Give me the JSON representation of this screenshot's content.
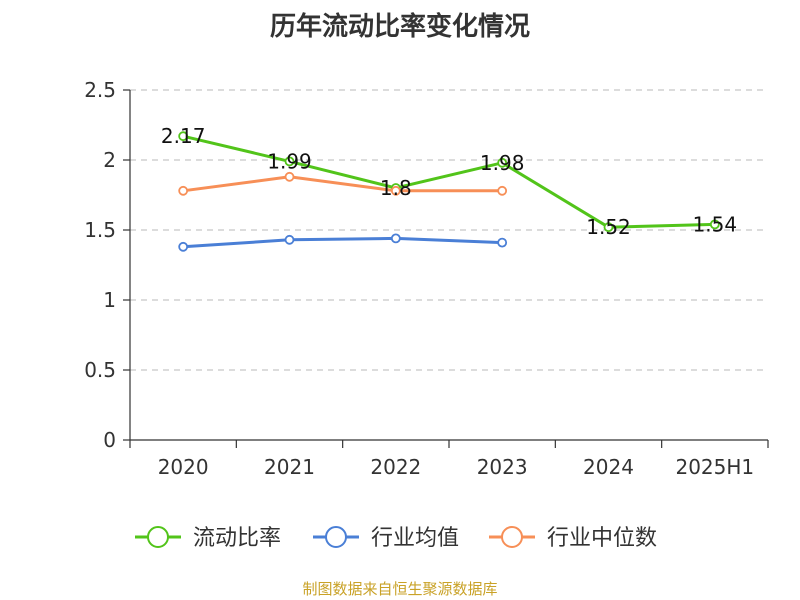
{
  "title": "历年流动比率变化情况",
  "source": "制图数据来自恒生聚源数据库",
  "chart_data": {
    "type": "line",
    "title": "历年流动比率变化情况",
    "categories": [
      "2020",
      "2021",
      "2022",
      "2023",
      "2024",
      "2025H1"
    ],
    "ylim": [
      0,
      2.5
    ],
    "yticks": [
      "0",
      "0.5",
      "1",
      "1.5",
      "2",
      "2.5"
    ],
    "grid": true,
    "legend_position": "bottom",
    "series": [
      {
        "name": "流动比率",
        "color": "#52c41a",
        "values": [
          2.17,
          1.99,
          1.8,
          1.98,
          1.52,
          1.54
        ],
        "labels": [
          "2.17",
          "1.99",
          "1.8",
          "1.98",
          "1.52",
          "1.54"
        ],
        "show_labels": true
      },
      {
        "name": "行业均值",
        "color": "#4a7fd6",
        "values": [
          1.38,
          1.43,
          1.44,
          1.41,
          null,
          null
        ],
        "show_labels": false
      },
      {
        "name": "行业中位数",
        "color": "#f78f57",
        "values": [
          1.78,
          1.88,
          1.78,
          1.78,
          null,
          null
        ],
        "show_labels": false
      }
    ]
  }
}
